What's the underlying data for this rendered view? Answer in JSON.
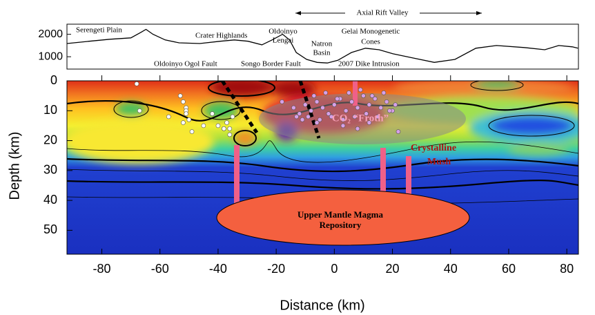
{
  "chart_data": [
    {
      "type": "line",
      "annotations": {
        "axial_rift_valley": "Axial Rift Valley",
        "serengeti": "Serengeti Plain",
        "crater_highlands": "Crater Highlands",
        "lengai": [
          "Oldoinyo",
          "Lengai"
        ],
        "natron": [
          "Natron",
          "Basin"
        ],
        "gelai": [
          "Gelai Monogenetic",
          "Cones"
        ],
        "ogol": "Oldoinyo Ogol Fault",
        "songo": "Songo Border Fault",
        "dike": "2007 Dike Intrusion"
      },
      "x": [
        -92,
        -84.3,
        -77.2,
        -70,
        -66.5,
        -64.8,
        -62.4,
        -58.2,
        -53.4,
        -46.3,
        -39.2,
        -34.4,
        -29.7,
        -24.9,
        -21.4,
        -17.8,
        -15.4,
        -13.1,
        -9.5,
        -5.9,
        -2.4,
        1.2,
        5.9,
        10.7,
        15.4,
        20.2,
        27.3,
        34.4,
        41.5,
        48.7,
        55.8,
        65.3,
        72.4,
        77.2,
        81.9,
        83.8
      ],
      "values": [
        1590,
        1690,
        1780,
        1840,
        2090,
        2220,
        2000,
        1750,
        1620,
        1590,
        1690,
        1750,
        1690,
        1530,
        1750,
        2000,
        1750,
        1190,
        880,
        750,
        720,
        840,
        1190,
        1380,
        1310,
        1130,
        940,
        750,
        880,
        1380,
        1500,
        1410,
        1310,
        1500,
        1440,
        1380
      ],
      "color": "#000000",
      "xlim": [
        -92,
        84
      ],
      "ylim": [
        450,
        2450
      ],
      "yticks": [
        1000,
        2000
      ]
    },
    {
      "type": "section",
      "xlabel": "Distance (km)",
      "ylabel": "Depth (km)",
      "xlim": [
        -92,
        84
      ],
      "ylim": [
        0,
        58
      ],
      "xticks": [
        -80,
        -60,
        -40,
        -20,
        0,
        20,
        40,
        60,
        80
      ],
      "yticks": [
        0,
        10,
        20,
        30,
        40,
        50
      ],
      "annotations": {
        "froth": "CO₂ “Froth”",
        "mush": [
          "Crystalline",
          "Mush"
        ],
        "repository": [
          "Upper Mantle Magma",
          "Repository"
        ]
      },
      "series": [
        {
          "color": "#ffffff",
          "x": [
            -68,
            -67,
            -57,
            -53,
            -52,
            -51,
            -51,
            -50,
            -52,
            -51,
            -49,
            -45,
            -42,
            -40,
            -38,
            -37,
            -36,
            -35,
            -36,
            -38
          ],
          "values": [
            1,
            10,
            12,
            5,
            7,
            9,
            10,
            13,
            14,
            11,
            17,
            15,
            11,
            15,
            16,
            14,
            16,
            12,
            18,
            16
          ]
        },
        {
          "color": "#d7a0e8",
          "x": [
            -14,
            -12,
            -10,
            -8,
            -6,
            -4,
            -2,
            0,
            2,
            4,
            6,
            8,
            10,
            12,
            14,
            16,
            18,
            20,
            -9,
            -5,
            -1,
            3,
            7,
            11,
            15,
            19,
            -7,
            -3,
            1,
            5,
            9,
            13,
            17,
            -11,
            21,
            22,
            3,
            8,
            -6,
            12,
            -13,
            -18
          ],
          "values": [
            9,
            11,
            8,
            10,
            7,
            9,
            11,
            8,
            6,
            10,
            7,
            9,
            5,
            8,
            6,
            9,
            7,
            10,
            12,
            13,
            12,
            13,
            12,
            11,
            12,
            10,
            5,
            4,
            6,
            4,
            3,
            5,
            4,
            13,
            8,
            17,
            15,
            16,
            14,
            14,
            12,
            7
          ]
        }
      ]
    }
  ]
}
